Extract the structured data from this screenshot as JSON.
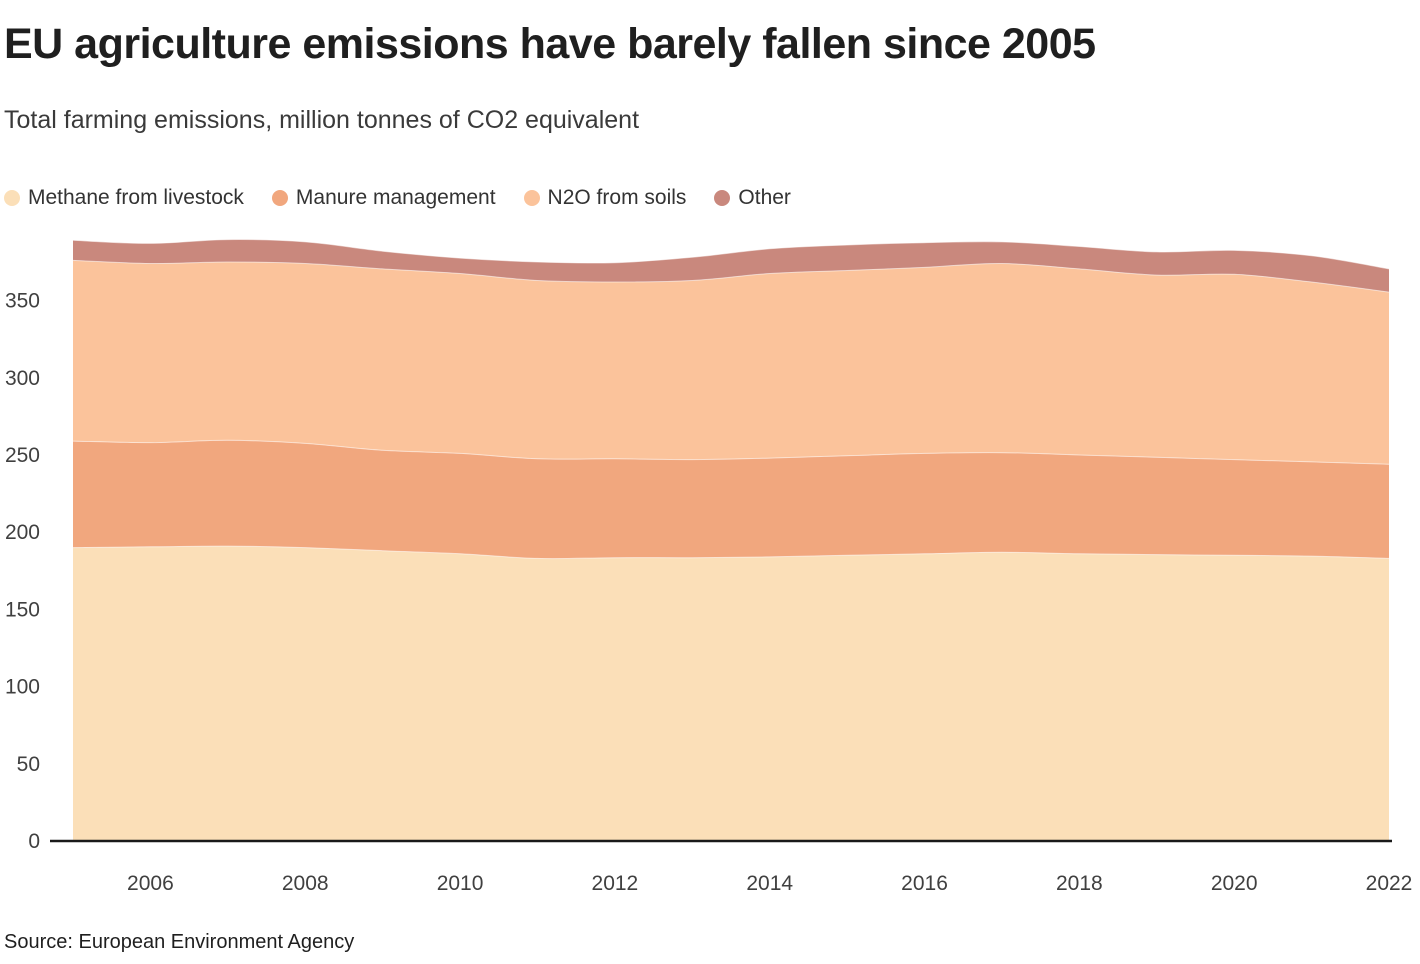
{
  "header": {
    "title": "EU agriculture emissions have barely fallen since 2005",
    "subtitle": "Total farming emissions, million tonnes of CO2 equivalent"
  },
  "footer": {
    "source": "Source: European Environment Agency"
  },
  "chart_data": {
    "type": "area",
    "stacked": true,
    "title": "EU agriculture emissions have barely fallen since 2005",
    "subtitle": "Total farming emissions, million tonnes of CO2 equivalent",
    "unit": "million tonnes of CO2 equivalent",
    "x": [
      2005,
      2006,
      2007,
      2008,
      2009,
      2010,
      2011,
      2012,
      2013,
      2014,
      2015,
      2016,
      2017,
      2018,
      2019,
      2020,
      2021,
      2022
    ],
    "series": [
      {
        "name": "Methane from livestock",
        "color": "#FBDFB8",
        "values": [
          190,
          190.5,
          191,
          190,
          188,
          186,
          183,
          183.5,
          183.5,
          184,
          185,
          186,
          187,
          186,
          185.5,
          185,
          184.5,
          183
        ]
      },
      {
        "name": "Manure management",
        "color": "#F1A77E",
        "values": [
          69,
          67.5,
          68.5,
          67.5,
          65,
          65,
          64.5,
          64,
          63.5,
          64,
          64.5,
          65,
          64.5,
          64,
          63,
          62,
          61,
          61
        ]
      },
      {
        "name": "N2O from soils",
        "color": "#FBC39B",
        "values": [
          117,
          116,
          115.5,
          116.5,
          117.5,
          116.5,
          115.5,
          114.5,
          116,
          119.5,
          120,
          120.5,
          122.5,
          120.5,
          118,
          120,
          116.5,
          111.5
        ]
      },
      {
        "name": "Other",
        "color": "#C9887D",
        "values": [
          13,
          13,
          14.5,
          14,
          11.5,
          10,
          12,
          12.5,
          15,
          16,
          16.5,
          16,
          14,
          14.5,
          15,
          15.5,
          17,
          15
        ]
      }
    ],
    "xlabel": "",
    "ylabel": "",
    "ylim": [
      0,
      390
    ],
    "y_ticks": [
      0,
      50,
      100,
      150,
      200,
      250,
      300,
      350
    ],
    "x_ticks": [
      2006,
      2008,
      2010,
      2012,
      2014,
      2016,
      2018,
      2020,
      2022
    ],
    "grid": false,
    "legend_position": "top",
    "axis_color": "#1a1a1a",
    "tick_color": "#404040"
  }
}
